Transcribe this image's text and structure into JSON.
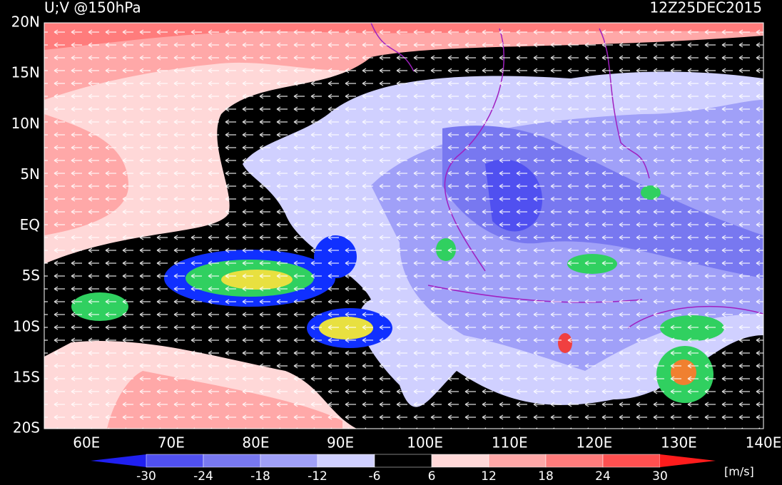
{
  "header": {
    "title": "U;V @150hPa",
    "time": "12Z25DEC2015"
  },
  "lat_labels": [
    "20N",
    "15N",
    "10N",
    "5N",
    "EQ",
    "5S",
    "10S",
    "15S",
    "20S"
  ],
  "lon_labels": [
    "60E",
    "70E",
    "80E",
    "90E",
    "100E",
    "110E",
    "120E",
    "130E",
    "140E"
  ],
  "colorbar": {
    "ticks": [
      -30,
      -24,
      -18,
      -12,
      -6,
      6,
      12,
      18,
      24,
      30
    ],
    "colors": [
      "#2020f0",
      "#5050f0",
      "#7878f0",
      "#a0a0f8",
      "#d0d0ff",
      "#000000",
      "#ffd8d8",
      "#ffa8a8",
      "#ff7c7c",
      "#ff5050",
      "#ff1c1c"
    ],
    "unit": "[m/s]"
  }
}
